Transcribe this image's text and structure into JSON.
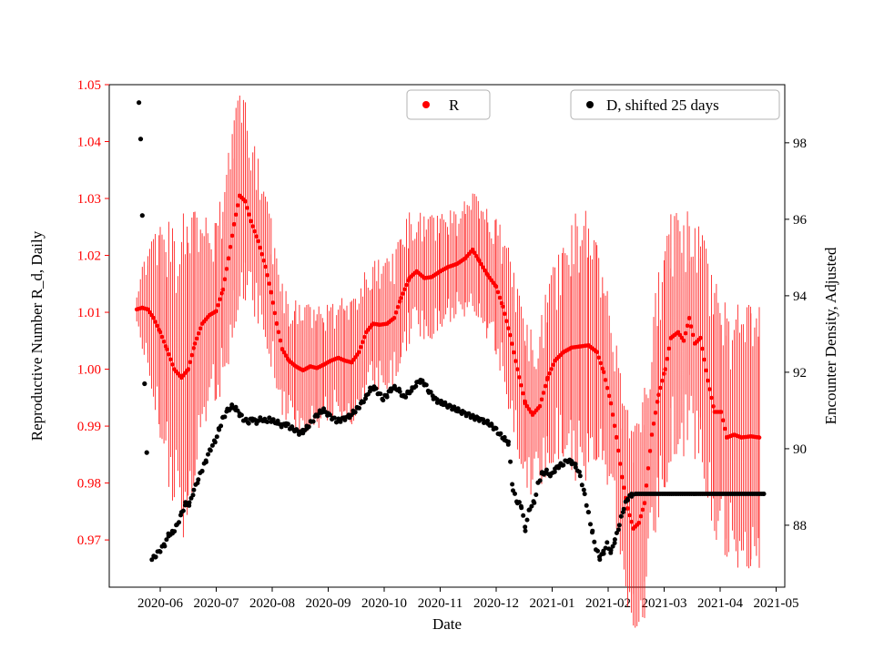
{
  "chart_data": {
    "type": "scatter",
    "title": "",
    "xlabel": "Date",
    "x_ticks": [
      "2020-06",
      "2020-07",
      "2020-08",
      "2020-09",
      "2020-10",
      "2020-11",
      "2020-12",
      "2021-01",
      "2021-02",
      "2021-03",
      "2021-04",
      "2021-05"
    ],
    "x_unit": "months from 2020-06-01 (fractional)",
    "grid": false,
    "legend_position": "upper center, two separate boxes",
    "left_axis": {
      "label": "Reproductive Number R_d, Daily",
      "color": "#ff0000",
      "ticks": [
        0.97,
        0.98,
        0.99,
        1.0,
        1.01,
        1.02,
        1.03,
        1.04,
        1.05
      ],
      "lim": [
        0.9617,
        1.05
      ]
    },
    "right_axis": {
      "label": "Encounter Density, Adjusted",
      "color": "#000000",
      "ticks": [
        88,
        90,
        92,
        94,
        96,
        98
      ],
      "lim": [
        86.38,
        99.52
      ]
    },
    "legend": [
      {
        "label": "R",
        "color": "#ff0000",
        "marker": "circle"
      },
      {
        "label": "D, shifted 25 days",
        "color": "#000000",
        "marker": "circle"
      }
    ],
    "series": [
      {
        "name": "R",
        "axis": "left",
        "color": "#ff0000",
        "marker": "circle",
        "errorbars": true,
        "points_format": "[x_months, R, err_halfwidth]",
        "points": [
          [
            -0.42,
            1.0105,
            0.003
          ],
          [
            -0.32,
            1.0108,
            0.005
          ],
          [
            -0.22,
            1.0105,
            0.007
          ],
          [
            -0.12,
            1.009,
            0.01
          ],
          [
            0.0,
            1.0065,
            0.013
          ],
          [
            0.12,
            1.0035,
            0.016
          ],
          [
            0.25,
            1.0,
            0.018
          ],
          [
            0.38,
            0.9985,
            0.02
          ],
          [
            0.5,
            1.0,
            0.019
          ],
          [
            0.62,
            1.0045,
            0.016
          ],
          [
            0.75,
            1.008,
            0.013
          ],
          [
            0.88,
            1.0095,
            0.012
          ],
          [
            1.0,
            1.0102,
            0.012
          ],
          [
            1.12,
            1.014,
            0.013
          ],
          [
            1.22,
            1.0195,
            0.013
          ],
          [
            1.32,
            1.0255,
            0.013
          ],
          [
            1.42,
            1.0305,
            0.013
          ],
          [
            1.52,
            1.0295,
            0.012
          ],
          [
            1.62,
            1.026,
            0.011
          ],
          [
            1.75,
            1.0225,
            0.01
          ],
          [
            1.88,
            1.018,
            0.009
          ],
          [
            1.98,
            1.0135,
            0.009
          ],
          [
            2.08,
            1.008,
            0.008
          ],
          [
            2.18,
            1.0035,
            0.008
          ],
          [
            2.3,
            1.0015,
            0.008
          ],
          [
            2.42,
            1.0005,
            0.008
          ],
          [
            2.55,
            0.9998,
            0.008
          ],
          [
            2.68,
            1.0005,
            0.0075
          ],
          [
            2.8,
            1.0002,
            0.0075
          ],
          [
            2.92,
            1.0008,
            0.0075
          ],
          [
            3.05,
            1.0015,
            0.0075
          ],
          [
            3.18,
            1.002,
            0.0075
          ],
          [
            3.3,
            1.0015,
            0.0075
          ],
          [
            3.42,
            1.0012,
            0.0075
          ],
          [
            3.55,
            1.003,
            0.0075
          ],
          [
            3.68,
            1.0065,
            0.008
          ],
          [
            3.8,
            1.008,
            0.008
          ],
          [
            3.92,
            1.0078,
            0.008
          ],
          [
            4.05,
            1.008,
            0.008
          ],
          [
            4.18,
            1.009,
            0.008
          ],
          [
            4.3,
            1.0125,
            0.008
          ],
          [
            4.45,
            1.016,
            0.008
          ],
          [
            4.58,
            1.0172,
            0.0075
          ],
          [
            4.72,
            1.016,
            0.0075
          ],
          [
            4.85,
            1.0162,
            0.0075
          ],
          [
            5.0,
            1.0172,
            0.007
          ],
          [
            5.15,
            1.018,
            0.007
          ],
          [
            5.3,
            1.0185,
            0.007
          ],
          [
            5.45,
            1.0195,
            0.007
          ],
          [
            5.58,
            1.021,
            0.007
          ],
          [
            5.7,
            1.019,
            0.0075
          ],
          [
            5.85,
            1.0165,
            0.008
          ],
          [
            6.0,
            1.0145,
            0.009
          ],
          [
            6.12,
            1.011,
            0.0095
          ],
          [
            6.25,
            1.006,
            0.01
          ],
          [
            6.38,
            1.0,
            0.01
          ],
          [
            6.52,
            0.994,
            0.01
          ],
          [
            6.65,
            0.992,
            0.01
          ],
          [
            6.78,
            0.9935,
            0.01
          ],
          [
            6.92,
            0.9985,
            0.0115
          ],
          [
            7.05,
            1.0015,
            0.012
          ],
          [
            7.2,
            1.003,
            0.013
          ],
          [
            7.35,
            1.0038,
            0.015
          ],
          [
            7.5,
            1.004,
            0.019
          ],
          [
            7.65,
            1.0042,
            0.015
          ],
          [
            7.8,
            1.003,
            0.013
          ],
          [
            7.92,
            0.9995,
            0.012
          ],
          [
            8.05,
            0.994,
            0.012
          ],
          [
            8.15,
            0.988,
            0.012
          ],
          [
            8.25,
            0.981,
            0.012
          ],
          [
            8.35,
            0.9755,
            0.012
          ],
          [
            8.45,
            0.972,
            0.012
          ],
          [
            8.55,
            0.973,
            0.013
          ],
          [
            8.65,
            0.9765,
            0.014
          ],
          [
            8.78,
            0.9885,
            0.015
          ],
          [
            8.9,
            0.9955,
            0.015
          ],
          [
            9.02,
            1.0,
            0.015
          ],
          [
            9.12,
            1.0055,
            0.015
          ],
          [
            9.25,
            1.0065,
            0.015
          ],
          [
            9.35,
            1.005,
            0.014
          ],
          [
            9.45,
            1.009,
            0.014
          ],
          [
            9.55,
            1.0045,
            0.014
          ],
          [
            9.65,
            1.0055,
            0.014
          ],
          [
            9.78,
            0.998,
            0.015
          ],
          [
            9.9,
            0.9925,
            0.016
          ],
          [
            10.02,
            0.9925,
            0.016
          ],
          [
            10.12,
            0.988,
            0.016
          ],
          [
            10.25,
            0.9885,
            0.016
          ],
          [
            10.38,
            0.988,
            0.016
          ],
          [
            10.55,
            0.9882,
            0.016
          ],
          [
            10.7,
            0.988,
            0.016
          ]
        ]
      },
      {
        "name": "D, shifted 25 days",
        "axis": "right",
        "color": "#000000",
        "marker": "circle",
        "errorbars": false,
        "points_format": "[x_months, D_adjusted]",
        "outliers": [
          [
            -0.38,
            99.05
          ],
          [
            -0.35,
            98.1
          ],
          [
            -0.32,
            96.1
          ],
          [
            -0.28,
            91.7
          ],
          [
            -0.24,
            89.9
          ]
        ],
        "points": [
          [
            -0.15,
            87.1
          ],
          [
            -0.08,
            87.2
          ],
          [
            0.0,
            87.35
          ],
          [
            0.08,
            87.5
          ],
          [
            0.15,
            87.75
          ],
          [
            0.22,
            87.8
          ],
          [
            0.3,
            88.0
          ],
          [
            0.38,
            88.3
          ],
          [
            0.45,
            88.55
          ],
          [
            0.52,
            88.55
          ],
          [
            0.6,
            88.9
          ],
          [
            0.68,
            89.2
          ],
          [
            0.75,
            89.45
          ],
          [
            0.82,
            89.7
          ],
          [
            0.9,
            90.0
          ],
          [
            0.98,
            90.2
          ],
          [
            1.05,
            90.5
          ],
          [
            1.12,
            90.8
          ],
          [
            1.2,
            91.0
          ],
          [
            1.28,
            91.1
          ],
          [
            1.35,
            91.05
          ],
          [
            1.42,
            90.9
          ],
          [
            1.5,
            90.75
          ],
          [
            1.58,
            90.7
          ],
          [
            1.65,
            90.78
          ],
          [
            1.72,
            90.7
          ],
          [
            1.8,
            90.78
          ],
          [
            1.88,
            90.72
          ],
          [
            1.95,
            90.78
          ],
          [
            2.02,
            90.72
          ],
          [
            2.1,
            90.68
          ],
          [
            2.18,
            90.6
          ],
          [
            2.25,
            90.65
          ],
          [
            2.32,
            90.55
          ],
          [
            2.4,
            90.5
          ],
          [
            2.48,
            90.42
          ],
          [
            2.55,
            90.45
          ],
          [
            2.62,
            90.55
          ],
          [
            2.7,
            90.7
          ],
          [
            2.78,
            90.85
          ],
          [
            2.85,
            90.95
          ],
          [
            2.92,
            91.0
          ],
          [
            3.0,
            90.9
          ],
          [
            3.08,
            90.8
          ],
          [
            3.15,
            90.72
          ],
          [
            3.22,
            90.75
          ],
          [
            3.3,
            90.8
          ],
          [
            3.38,
            90.85
          ],
          [
            3.45,
            90.95
          ],
          [
            3.52,
            91.05
          ],
          [
            3.6,
            91.2
          ],
          [
            3.68,
            91.35
          ],
          [
            3.75,
            91.55
          ],
          [
            3.82,
            91.6
          ],
          [
            3.9,
            91.45
          ],
          [
            3.98,
            91.3
          ],
          [
            4.05,
            91.4
          ],
          [
            4.12,
            91.55
          ],
          [
            4.2,
            91.6
          ],
          [
            4.28,
            91.5
          ],
          [
            4.35,
            91.35
          ],
          [
            4.42,
            91.45
          ],
          [
            4.5,
            91.55
          ],
          [
            4.58,
            91.7
          ],
          [
            4.65,
            91.78
          ],
          [
            4.72,
            91.7
          ],
          [
            4.8,
            91.5
          ],
          [
            4.88,
            91.35
          ],
          [
            4.95,
            91.25
          ],
          [
            5.02,
            91.2
          ],
          [
            5.1,
            91.15
          ],
          [
            5.18,
            91.1
          ],
          [
            5.25,
            91.05
          ],
          [
            5.32,
            91.0
          ],
          [
            5.4,
            90.95
          ],
          [
            5.48,
            90.9
          ],
          [
            5.55,
            90.85
          ],
          [
            5.62,
            90.8
          ],
          [
            5.7,
            90.78
          ],
          [
            5.78,
            90.72
          ],
          [
            5.85,
            90.68
          ],
          [
            5.92,
            90.6
          ],
          [
            6.0,
            90.5
          ],
          [
            6.08,
            90.35
          ],
          [
            6.15,
            90.25
          ],
          [
            6.22,
            90.15
          ],
          [
            6.3,
            88.9
          ],
          [
            6.38,
            88.6
          ],
          [
            6.45,
            88.5
          ],
          [
            6.52,
            87.9
          ],
          [
            6.6,
            88.45
          ],
          [
            6.68,
            88.6
          ],
          [
            6.75,
            89.1
          ],
          [
            6.82,
            89.35
          ],
          [
            6.9,
            89.4
          ],
          [
            6.98,
            89.3
          ],
          [
            7.05,
            89.45
          ],
          [
            7.12,
            89.55
          ],
          [
            7.2,
            89.6
          ],
          [
            7.28,
            89.7
          ],
          [
            7.35,
            89.65
          ],
          [
            7.42,
            89.55
          ],
          [
            7.5,
            89.3
          ],
          [
            7.58,
            88.8
          ],
          [
            7.65,
            88.3
          ],
          [
            7.72,
            87.8
          ],
          [
            7.78,
            87.4
          ],
          [
            7.85,
            87.15
          ],
          [
            7.92,
            87.3
          ],
          [
            7.98,
            87.5
          ],
          [
            8.05,
            87.3
          ],
          [
            8.12,
            87.6
          ],
          [
            8.2,
            88.0
          ],
          [
            8.28,
            88.45
          ],
          [
            8.35,
            88.7
          ],
          [
            8.42,
            88.8
          ],
          [
            8.5,
            88.82
          ],
          [
            10.78,
            88.82
          ]
        ]
      }
    ]
  }
}
